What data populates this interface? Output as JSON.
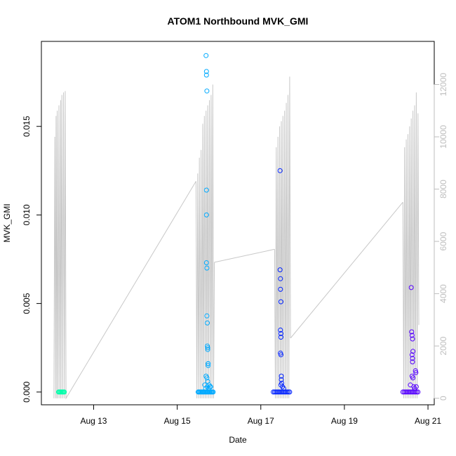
{
  "chart_data": {
    "type": "scatter",
    "title": "ATOM1 Northbound MVK_GMI",
    "xlabel": "Date",
    "ylabel": "MVK_GMI",
    "x_tick_labels": [
      "Aug 13",
      "Aug 15",
      "Aug 17",
      "Aug 19",
      "Aug 21"
    ],
    "x_tick_days": [
      13,
      15,
      17,
      19,
      21
    ],
    "xlim_days": [
      11.75,
      21.15
    ],
    "ylim": [
      -0.00072,
      0.0198
    ],
    "y_ticks": [
      0.0,
      0.005,
      0.01,
      0.015
    ],
    "y_tick_labels": [
      "0.000",
      "0.005",
      "0.010",
      "0.015"
    ],
    "y2_ticks": [
      0,
      2000,
      4000,
      6000,
      8000,
      10000,
      12000
    ],
    "y2_tick_labels": [
      "0",
      "2000",
      "4000",
      "6000",
      "8000",
      "10000",
      "12000"
    ],
    "y2lim": [
      -250,
      13650
    ],
    "grid": false,
    "colors": {
      "secondary_line": "#c8c8c8",
      "secondary_axis": "#bebebe",
      "points": [
        "#00ffaa",
        "#00aaff",
        "#0022ff",
        "#5500ff"
      ]
    },
    "series": [
      {
        "color": "#00ffaa",
        "x": [
          12.16,
          12.18,
          12.2,
          12.22,
          12.24,
          12.26,
          12.28,
          12.3
        ],
        "y": [
          0,
          0,
          0,
          0,
          0,
          0,
          0,
          0
        ]
      },
      {
        "color": "#00aaff",
        "x": [
          15.5,
          15.52,
          15.54,
          15.56,
          15.58,
          15.6,
          15.62,
          15.64,
          15.66,
          15.68,
          15.7,
          15.72,
          15.74,
          15.76,
          15.78,
          15.8,
          15.82,
          15.84,
          15.86,
          15.69,
          15.7,
          15.7,
          15.71,
          15.7,
          15.7,
          15.7,
          15.71,
          15.71,
          15.72,
          15.72,
          15.73,
          15.73,
          15.74,
          15.74,
          15.74,
          15.69,
          15.71,
          15.73,
          15.76,
          15.78,
          15.8,
          15.66,
          15.68,
          15.72,
          15.75
        ],
        "y": [
          0,
          0,
          0,
          0,
          0,
          0,
          0,
          0,
          0,
          0,
          0,
          0,
          0,
          0,
          0,
          0,
          0,
          0,
          0,
          0.019,
          0.0181,
          0.0179,
          0.017,
          0.0114,
          0.01,
          0.0073,
          0.007,
          0.0043,
          0.0039,
          0.0026,
          0.0025,
          0.0024,
          0.0016,
          0.0016,
          0.0015,
          0.0009,
          0.0008,
          0.0006,
          0.0004,
          0.0003,
          0.0003,
          0.0004,
          0.0002,
          0.0003,
          0.0002
        ]
      },
      {
        "color": "#0022ff",
        "x": [
          17.3,
          17.33,
          17.36,
          17.39,
          17.42,
          17.45,
          17.48,
          17.51,
          17.54,
          17.57,
          17.6,
          17.63,
          17.66,
          17.69,
          17.46,
          17.46,
          17.47,
          17.47,
          17.48,
          17.47,
          17.48,
          17.48,
          17.47,
          17.48,
          17.49,
          17.49,
          17.5,
          17.48,
          17.52,
          17.55
        ],
        "y": [
          0,
          0,
          0,
          0,
          0,
          0,
          0,
          0,
          0,
          0,
          0,
          0,
          0,
          0,
          0.0125,
          0.0069,
          0.0064,
          0.0058,
          0.0051,
          0.0035,
          0.0033,
          0.0031,
          0.0022,
          0.0021,
          0.0009,
          0.0007,
          0.0005,
          0.0004,
          0.0003,
          0.0002
        ]
      },
      {
        "color": "#5500ff",
        "x": [
          20.4,
          20.43,
          20.46,
          20.49,
          20.52,
          20.55,
          20.58,
          20.61,
          20.64,
          20.67,
          20.7,
          20.73,
          20.76,
          20.6,
          20.61,
          20.62,
          20.63,
          20.62,
          20.64,
          20.63,
          20.63,
          20.62,
          20.64,
          20.66,
          20.7,
          20.71,
          20.72,
          20.58,
          20.68
        ],
        "y": [
          0,
          0,
          0,
          0,
          0,
          0,
          0,
          0,
          0,
          0,
          0,
          0,
          0,
          0.0059,
          0.0034,
          0.0032,
          0.003,
          0.0021,
          0.0023,
          0.0019,
          0.0017,
          0.0009,
          0.0008,
          0.0003,
          0.0012,
          0.0011,
          0.0003,
          0.0004,
          0.0002
        ]
      }
    ],
    "secondary_series": {
      "axis": "right",
      "color": "#c8c8c8",
      "segments": [
        {
          "x": [
            12.05,
            12.07,
            12.09,
            12.1,
            12.12,
            12.13,
            12.15,
            12.17,
            12.19,
            12.21,
            12.22,
            12.24,
            12.26,
            12.28,
            12.3,
            12.32,
            12.34,
            12.36
          ],
          "y": [
            0,
            10000,
            0,
            10800,
            0,
            11000,
            0,
            11200,
            0,
            11400,
            0,
            11600,
            0,
            11700,
            0,
            11750,
            0,
            50
          ]
        },
        {
          "x": [
            12.36,
            15.45
          ],
          "y": [
            50,
            8300
          ]
        },
        {
          "x": [
            15.45,
            15.47,
            15.49,
            15.51,
            15.53,
            15.55,
            15.57,
            15.59,
            15.61,
            15.63,
            15.65,
            15.67,
            15.69,
            15.71,
            15.73,
            15.75,
            15.77,
            15.79,
            15.81,
            15.83,
            15.85,
            15.87,
            15.89
          ],
          "y": [
            8300,
            0,
            8600,
            0,
            9200,
            0,
            9500,
            0,
            10500,
            0,
            10800,
            0,
            11000,
            0,
            11200,
            0,
            11400,
            0,
            11600,
            0,
            12000,
            0,
            5200
          ]
        },
        {
          "x": [
            15.89,
            17.33
          ],
          "y": [
            5200,
            5700
          ]
        },
        {
          "x": [
            17.33,
            17.35,
            17.37,
            17.39,
            17.41,
            17.43,
            17.45,
            17.47,
            17.49,
            17.51,
            17.53,
            17.55,
            17.57,
            17.59,
            17.61,
            17.63,
            17.65,
            17.67,
            17.69,
            17.71
          ],
          "y": [
            5700,
            0,
            9600,
            0,
            10000,
            0,
            10400,
            0,
            10600,
            0,
            10800,
            0,
            11000,
            0,
            11300,
            0,
            11600,
            0,
            12300,
            2300
          ]
        },
        {
          "x": [
            17.71,
            20.4
          ],
          "y": [
            2300,
            7500
          ]
        },
        {
          "x": [
            20.4,
            20.42,
            20.44,
            20.46,
            20.48,
            20.5,
            20.52,
            20.54,
            20.56,
            20.58,
            20.6,
            20.62,
            20.64,
            20.66,
            20.68,
            20.7,
            20.72,
            20.74,
            20.76,
            20.78
          ],
          "y": [
            7500,
            0,
            9600,
            0,
            9900,
            0,
            10100,
            0,
            10400,
            0,
            10700,
            0,
            11000,
            0,
            11200,
            0,
            11700,
            0,
            10900,
            2800
          ]
        }
      ]
    }
  }
}
